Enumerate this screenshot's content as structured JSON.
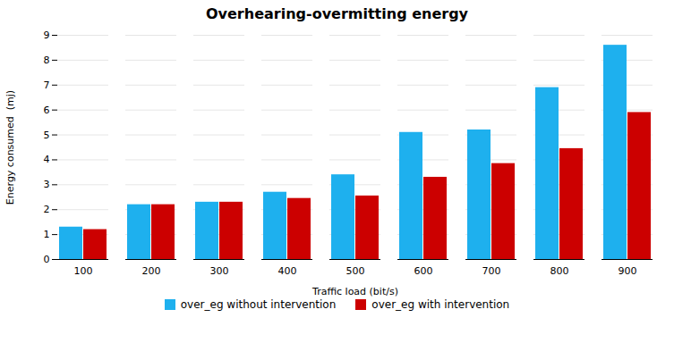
{
  "chart_data": {
    "type": "bar",
    "title": "Overhearing-overmitting energy",
    "xlabel": "Traffic load (bit/s)",
    "ylabel": "Energy consumed  (mj)",
    "categories": [
      "100",
      "200",
      "300",
      "400",
      "500",
      "600",
      "700",
      "800",
      "900"
    ],
    "series": [
      {
        "name": "over_eg without intervention",
        "color": "#1EB0EE",
        "values": [
          1.3,
          2.2,
          2.3,
          2.7,
          3.4,
          5.1,
          5.2,
          6.9,
          8.6
        ]
      },
      {
        "name": "over_eg with intervention",
        "color": "#CC0000",
        "values": [
          1.2,
          2.2,
          2.3,
          2.45,
          2.55,
          3.3,
          3.85,
          4.45,
          5.9
        ]
      }
    ],
    "ylim": [
      0,
      9
    ],
    "yticks": [
      0,
      1,
      2,
      3,
      4,
      5,
      6,
      7,
      8,
      9
    ],
    "grid": true,
    "legend": "bottom"
  }
}
